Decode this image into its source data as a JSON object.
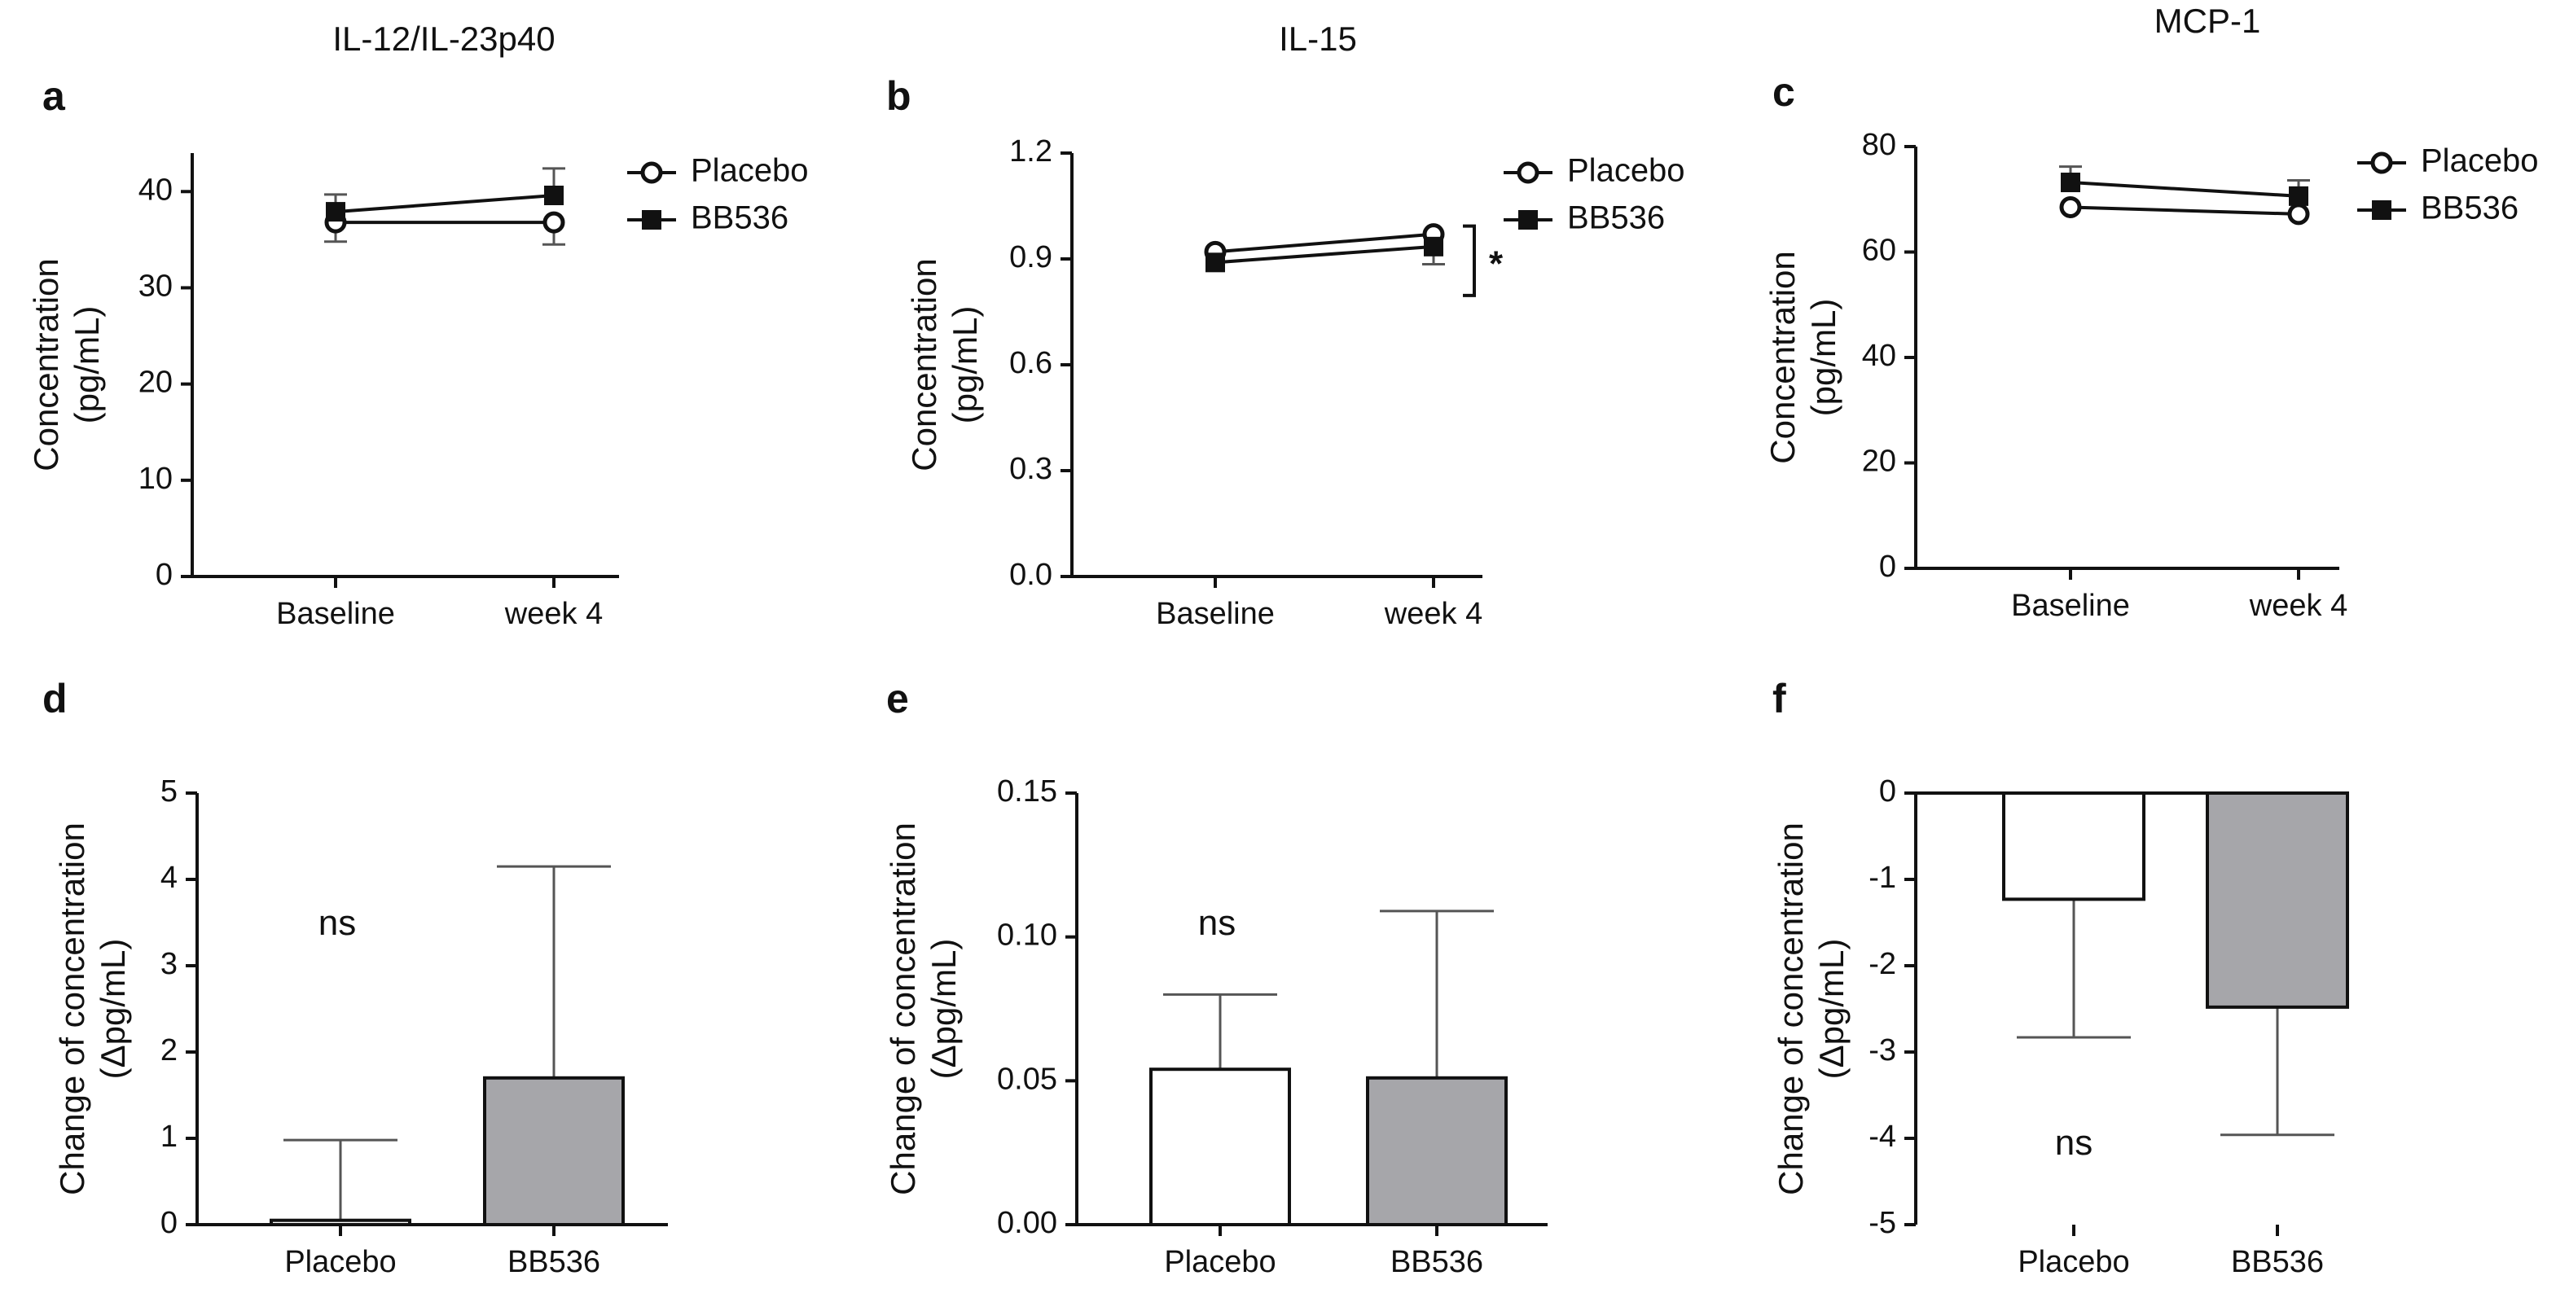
{
  "figure": {
    "column_titles": [
      "IL-12/IL-23p40",
      "IL-15",
      "MCP-1"
    ]
  },
  "colors": {
    "line": "#111111",
    "errorbar": "#555555",
    "placebo_fill": "#ffffff",
    "bb536_fill": "#a6a6aa"
  },
  "chart_data": [
    {
      "panel": "a",
      "type": "line",
      "title": "IL-12/IL-23p40",
      "categories": [
        "Baseline",
        "week 4"
      ],
      "ylabel_lines": [
        "Concentration",
        "(pg/mL)"
      ],
      "ylim": [
        0,
        44
      ],
      "yticks": [
        0,
        10,
        20,
        30,
        40
      ],
      "ytick_labels": [
        "0",
        "10",
        "20",
        "30",
        "40"
      ],
      "series": [
        {
          "name": "Placebo",
          "marker": "open-circle",
          "values": [
            36.8,
            36.8
          ],
          "err_up": [
            null,
            null
          ],
          "err_down": [
            2.0,
            2.3
          ]
        },
        {
          "name": "BB536",
          "marker": "filled-square",
          "values": [
            37.9,
            39.6
          ],
          "err_up": [
            1.8,
            2.8
          ],
          "err_down": [
            null,
            null
          ]
        }
      ],
      "legend": [
        "Placebo",
        "BB536"
      ],
      "annotation": ""
    },
    {
      "panel": "b",
      "type": "line",
      "title": "IL-15",
      "categories": [
        "Baseline",
        "week 4"
      ],
      "ylabel_lines": [
        "Concentration",
        "(pg/mL)"
      ],
      "ylim": [
        0,
        1.2
      ],
      "yticks": [
        0,
        0.3,
        0.6,
        0.9,
        1.2
      ],
      "ytick_labels": [
        "0.0",
        "0.3",
        "0.6",
        "0.9",
        "1.2"
      ],
      "series": [
        {
          "name": "Placebo",
          "marker": "open-circle",
          "values": [
            0.92,
            0.97
          ],
          "err_up": [
            null,
            null
          ],
          "err_down": [
            null,
            null
          ]
        },
        {
          "name": "BB536",
          "marker": "filled-square",
          "values": [
            0.89,
            0.935
          ],
          "err_up": [
            null,
            null
          ],
          "err_down": [
            null,
            0.05
          ]
        }
      ],
      "legend": [
        "Placebo",
        "BB536"
      ],
      "annotation": "*"
    },
    {
      "panel": "c",
      "type": "line",
      "title": "MCP-1",
      "categories": [
        "Baseline",
        "week 4"
      ],
      "ylabel_lines": [
        "Concentration",
        "(pg/mL)"
      ],
      "ylim": [
        0,
        80
      ],
      "yticks": [
        0,
        20,
        40,
        60,
        80
      ],
      "ytick_labels": [
        "0",
        "20",
        "40",
        "60",
        "80"
      ],
      "series": [
        {
          "name": "Placebo",
          "marker": "open-circle",
          "values": [
            68.5,
            67.2
          ],
          "err_up": [
            null,
            null
          ],
          "err_down": [
            null,
            null
          ]
        },
        {
          "name": "BB536",
          "marker": "filled-square",
          "values": [
            73.2,
            70.6
          ],
          "err_up": [
            3.0,
            3.0
          ],
          "err_down": [
            null,
            null
          ]
        }
      ],
      "legend": [
        "Placebo",
        "BB536"
      ],
      "annotation": ""
    },
    {
      "panel": "d",
      "type": "bar",
      "categories": [
        "Placebo",
        "BB536"
      ],
      "values": [
        0.05,
        1.7
      ],
      "err": [
        0.93,
        2.45
      ],
      "ylabel_lines": [
        "Change of concentration",
        "(Δpg/mL)"
      ],
      "ylim": [
        0,
        5
      ],
      "yticks": [
        0,
        1,
        2,
        3,
        4,
        5
      ],
      "ytick_labels": [
        "0",
        "1",
        "2",
        "3",
        "4",
        "5"
      ],
      "annotation": "ns"
    },
    {
      "panel": "e",
      "type": "bar",
      "categories": [
        "Placebo",
        "BB536"
      ],
      "values": [
        0.054,
        0.051
      ],
      "err": [
        0.026,
        0.058
      ],
      "ylabel_lines": [
        "Change of concentration",
        "(Δpg/mL)"
      ],
      "ylim": [
        0,
        0.15
      ],
      "yticks": [
        0,
        0.05,
        0.1,
        0.15
      ],
      "ytick_labels": [
        "0.00",
        "0.05",
        "0.10",
        "0.15"
      ],
      "annotation": "ns"
    },
    {
      "panel": "f",
      "type": "bar",
      "categories": [
        "Placebo",
        "BB536"
      ],
      "values": [
        -1.23,
        -2.48
      ],
      "err": [
        1.6,
        1.48
      ],
      "ylabel_lines": [
        "Change of concentration",
        "(Δpg/mL)"
      ],
      "ylim": [
        -5,
        0
      ],
      "yticks": [
        0,
        -1,
        -2,
        -3,
        -4,
        -5
      ],
      "ytick_labels": [
        "0",
        "-1",
        "-2",
        "-3",
        "-4",
        "-5"
      ],
      "annotation": "ns"
    }
  ]
}
